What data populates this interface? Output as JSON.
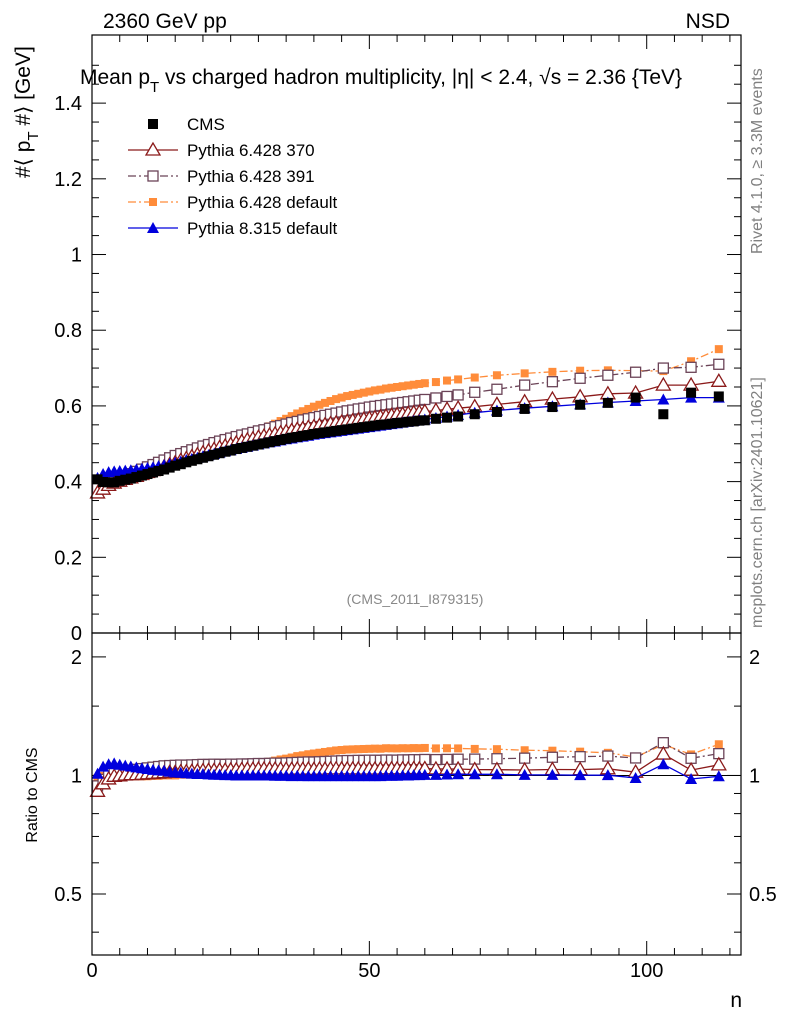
{
  "header": {
    "energy_label": "2360 GeV pp",
    "process_label": "NSD",
    "title": "Mean p_T vs charged hadron multiplicity, |η| < 2.4, √s = 2.36 {TeV}",
    "title_part1": "Mean p",
    "title_sub": "T",
    "title_part2": " vs charged hadron multiplicity, ",
    "title_part3": "|η| < 2.4, √s = 2.36 {TeV}",
    "analysis_id": "(CMS_2011_I879315)"
  },
  "side_labels": {
    "rivet": "Rivet 4.1.0, ≥ 3.3M events",
    "mcplots": "mcplots.cern.ch [arXiv:2401.10621]"
  },
  "chart_data": {
    "type": "scatter",
    "top_panel": {
      "ylabel": "#⟨ p_T #⟩ [GeV]",
      "ylabel_part1": "#⟨ p",
      "ylabel_sub": "T",
      "ylabel_part2": " #⟩ [GeV]",
      "ylim": [
        0,
        1.58
      ],
      "yticks": [
        0,
        0.2,
        0.4,
        0.6,
        0.8,
        1,
        1.2,
        1.4
      ],
      "ytick_labels": [
        "0",
        "0.2",
        "0.4",
        "0.6",
        "0.8",
        "1",
        "1.2",
        "1.4"
      ]
    },
    "ratio_panel": {
      "ylabel": "Ratio to CMS",
      "ylim": [
        0.35,
        2.3
      ],
      "scale": "log",
      "yticks": [
        0.5,
        1,
        2
      ],
      "ytick_labels": [
        "0.5",
        "1",
        "2"
      ]
    },
    "xlabel": "n",
    "xlim": [
      0,
      117
    ],
    "xticks": [
      0,
      50,
      100
    ],
    "xtick_labels": [
      "0",
      "50",
      "100"
    ],
    "x": [
      1,
      2,
      3,
      4,
      5,
      6,
      7,
      8,
      9,
      10,
      11,
      12,
      13,
      14,
      15,
      16,
      17,
      18,
      19,
      20,
      21,
      22,
      23,
      24,
      25,
      26,
      27,
      28,
      29,
      30,
      31,
      32,
      33,
      34,
      35,
      36,
      37,
      38,
      39,
      40,
      41,
      42,
      43,
      44,
      45,
      46,
      47,
      48,
      49,
      50,
      51,
      52,
      53,
      54,
      55,
      56,
      57,
      58,
      59,
      60,
      62,
      64,
      66,
      69,
      73,
      78,
      83,
      88,
      93,
      98,
      103,
      108,
      113
    ],
    "series": [
      {
        "name": "CMS",
        "color": "#000000",
        "marker": "filled-square",
        "line": "none",
        "values": [
          0.406,
          0.399,
          0.398,
          0.398,
          0.402,
          0.405,
          0.408,
          0.412,
          0.416,
          0.42,
          0.424,
          0.428,
          0.432,
          0.437,
          0.442,
          0.446,
          0.451,
          0.455,
          0.459,
          0.463,
          0.467,
          0.471,
          0.475,
          0.479,
          0.482,
          0.486,
          0.489,
          0.492,
          0.495,
          0.498,
          0.501,
          0.504,
          0.507,
          0.51,
          0.513,
          0.516,
          0.518,
          0.521,
          0.523,
          0.526,
          0.528,
          0.53,
          0.532,
          0.534,
          0.536,
          0.538,
          0.54,
          0.542,
          0.544,
          0.546,
          0.548,
          0.55,
          0.551,
          0.553,
          0.555,
          0.556,
          0.558,
          0.559,
          0.561,
          0.562,
          0.566,
          0.569,
          0.572,
          0.578,
          0.584,
          0.592,
          0.597,
          0.603,
          0.608,
          0.622,
          0.578,
          0.635,
          0.625
        ]
      },
      {
        "name": "Pythia 6.428 370",
        "color": "#8b1a1a",
        "marker": "open-triangle",
        "line": "solid",
        "values": [
          0.37,
          0.38,
          0.39,
          0.396,
          0.401,
          0.406,
          0.41,
          0.414,
          0.419,
          0.424,
          0.429,
          0.434,
          0.439,
          0.445,
          0.45,
          0.456,
          0.461,
          0.466,
          0.471,
          0.476,
          0.481,
          0.485,
          0.49,
          0.494,
          0.498,
          0.502,
          0.506,
          0.51,
          0.513,
          0.517,
          0.52,
          0.523,
          0.526,
          0.529,
          0.532,
          0.535,
          0.538,
          0.54,
          0.543,
          0.545,
          0.548,
          0.55,
          0.553,
          0.555,
          0.557,
          0.559,
          0.561,
          0.563,
          0.565,
          0.567,
          0.569,
          0.571,
          0.573,
          0.575,
          0.577,
          0.578,
          0.58,
          0.582,
          0.583,
          0.585,
          0.588,
          0.591,
          0.594,
          0.598,
          0.604,
          0.611,
          0.618,
          0.624,
          0.632,
          0.634,
          0.655,
          0.655,
          0.665
        ]
      },
      {
        "name": "Pythia 6.428 391",
        "color": "#6b4357",
        "marker": "open-square",
        "line": "dashdot",
        "values": [
          0.382,
          0.39,
          0.397,
          0.404,
          0.41,
          0.415,
          0.421,
          0.427,
          0.433,
          0.439,
          0.445,
          0.451,
          0.457,
          0.463,
          0.469,
          0.474,
          0.479,
          0.484,
          0.489,
          0.494,
          0.498,
          0.503,
          0.507,
          0.511,
          0.515,
          0.519,
          0.523,
          0.526,
          0.53,
          0.534,
          0.537,
          0.541,
          0.545,
          0.548,
          0.552,
          0.556,
          0.559,
          0.563,
          0.566,
          0.569,
          0.572,
          0.575,
          0.578,
          0.581,
          0.584,
          0.587,
          0.589,
          0.592,
          0.594,
          0.597,
          0.599,
          0.601,
          0.603,
          0.605,
          0.607,
          0.609,
          0.611,
          0.613,
          0.615,
          0.617,
          0.621,
          0.625,
          0.629,
          0.636,
          0.644,
          0.655,
          0.664,
          0.673,
          0.681,
          0.689,
          0.7,
          0.702,
          0.71
        ]
      },
      {
        "name": "Pythia 6.428 default",
        "color": "#ff8c3a",
        "marker": "filled-square-small",
        "line": "dashdot",
        "values": [
          0.4,
          0.398,
          0.396,
          0.398,
          0.4,
          0.403,
          0.406,
          0.41,
          0.414,
          0.418,
          0.423,
          0.427,
          0.432,
          0.437,
          0.442,
          0.448,
          0.453,
          0.459,
          0.465,
          0.471,
          0.477,
          0.483,
          0.489,
          0.495,
          0.501,
          0.507,
          0.513,
          0.52,
          0.526,
          0.533,
          0.539,
          0.546,
          0.553,
          0.56,
          0.566,
          0.573,
          0.58,
          0.586,
          0.592,
          0.598,
          0.603,
          0.608,
          0.613,
          0.618,
          0.622,
          0.626,
          0.629,
          0.632,
          0.635,
          0.638,
          0.641,
          0.643,
          0.646,
          0.648,
          0.65,
          0.652,
          0.654,
          0.656,
          0.658,
          0.66,
          0.663,
          0.667,
          0.67,
          0.675,
          0.681,
          0.686,
          0.69,
          0.693,
          0.694,
          0.693,
          0.692,
          0.718,
          0.75
        ]
      },
      {
        "name": "Pythia 8.315 default",
        "color": "#0000dd",
        "marker": "filled-triangle",
        "line": "solid",
        "values": [
          0.41,
          0.42,
          0.425,
          0.427,
          0.428,
          0.429,
          0.43,
          0.432,
          0.434,
          0.436,
          0.438,
          0.441,
          0.444,
          0.447,
          0.45,
          0.453,
          0.457,
          0.46,
          0.463,
          0.467,
          0.47,
          0.473,
          0.477,
          0.48,
          0.483,
          0.486,
          0.489,
          0.492,
          0.495,
          0.498,
          0.501,
          0.504,
          0.506,
          0.509,
          0.512,
          0.514,
          0.517,
          0.519,
          0.521,
          0.524,
          0.526,
          0.528,
          0.53,
          0.532,
          0.534,
          0.536,
          0.538,
          0.54,
          0.542,
          0.544,
          0.546,
          0.548,
          0.55,
          0.552,
          0.554,
          0.556,
          0.558,
          0.56,
          0.562,
          0.564,
          0.568,
          0.572,
          0.576,
          0.582,
          0.588,
          0.594,
          0.599,
          0.604,
          0.609,
          0.613,
          0.617,
          0.622,
          0.622
        ]
      }
    ]
  }
}
